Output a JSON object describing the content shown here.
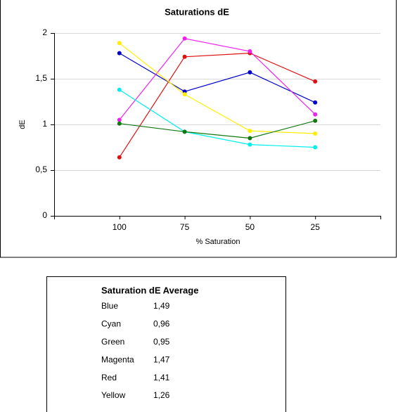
{
  "chart_data": {
    "type": "line",
    "title": "Saturations dE",
    "x_label": "% Saturation",
    "y_label": "dE",
    "categories": [
      "100",
      "75",
      "50",
      "25"
    ],
    "series": [
      {
        "color": "#0000cc",
        "values": [
          1.78,
          1.36,
          1.57,
          1.24
        ]
      },
      {
        "color": "#dd1111",
        "values": [
          0.64,
          1.74,
          1.78,
          1.47
        ]
      },
      {
        "color": "#ee22ee",
        "values": [
          1.05,
          1.94,
          1.8,
          1.11
        ]
      },
      {
        "color": "#ffee00",
        "values": [
          1.89,
          1.33,
          0.93,
          0.9
        ]
      },
      {
        "color": "#00eeee",
        "values": [
          1.38,
          0.92,
          0.78,
          0.75
        ]
      },
      {
        "color": "#117711",
        "values": [
          1.01,
          0.92,
          0.85,
          1.04
        ]
      }
    ],
    "ylim": [
      0,
      2
    ],
    "yticks": [
      0,
      {
        "value": 0.5,
        "label": "0,5"
      },
      1,
      {
        "value": 1.5,
        "label": "1,5"
      },
      2
    ],
    "grid": true
  },
  "table": {
    "title": "Saturation dE Average",
    "rows": [
      [
        "Blue",
        "1,49"
      ],
      [
        "Cyan",
        "0,96"
      ],
      [
        "Green",
        "0,95"
      ],
      [
        "Magenta",
        "1,47"
      ],
      [
        "Red",
        "1,41"
      ],
      [
        "Yellow",
        "1,26"
      ]
    ]
  }
}
